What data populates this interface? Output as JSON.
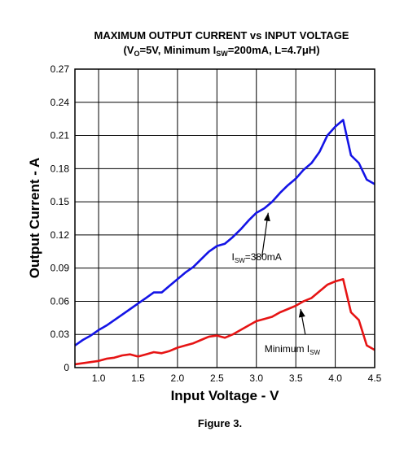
{
  "chart_data": {
    "type": "line",
    "title_line1": "MAXIMUM OUTPUT CURRENT vs INPUT VOLTAGE",
    "title_line2": {
      "open": "(V",
      "vo_sub": "O",
      "mid": "=5V, Minimum I",
      "isw_sub": "SW",
      "close": "=200mA, L=4.7μH)"
    },
    "xlabel": "Input Voltage - V",
    "ylabel": "Output Current - A",
    "xlim": [
      0.7,
      4.5
    ],
    "ylim": [
      0,
      0.27
    ],
    "x_ticks": [
      1.0,
      1.5,
      2.0,
      2.5,
      3.0,
      3.5,
      4.0,
      4.5
    ],
    "x_tick_labels": [
      "1.0",
      "1.5",
      "2.0",
      "2.5",
      "3.0",
      "3.5",
      "4.0",
      "4.5"
    ],
    "y_ticks": [
      0,
      0.03,
      0.06,
      0.09,
      0.12,
      0.15,
      0.18,
      0.21,
      0.24,
      0.27
    ],
    "y_tick_labels": [
      "0",
      "0.03",
      "0.06",
      "0.09",
      "0.12",
      "0.15",
      "0.18",
      "0.21",
      "0.24",
      "0.27"
    ],
    "grid": true,
    "series": [
      {
        "color": "#1414e6",
        "x": [
          0.7,
          0.8,
          0.9,
          1.0,
          1.1,
          1.2,
          1.3,
          1.4,
          1.5,
          1.6,
          1.7,
          1.8,
          1.9,
          2.0,
          2.1,
          2.2,
          2.3,
          2.4,
          2.5,
          2.6,
          2.7,
          2.8,
          2.9,
          3.0,
          3.1,
          3.2,
          3.3,
          3.4,
          3.5,
          3.6,
          3.7,
          3.8,
          3.9,
          4.0,
          4.05,
          4.1,
          4.2,
          4.3,
          4.4,
          4.5
        ],
        "y": [
          0.02,
          0.025,
          0.029,
          0.034,
          0.038,
          0.043,
          0.048,
          0.053,
          0.058,
          0.063,
          0.068,
          0.068,
          0.074,
          0.08,
          0.086,
          0.091,
          0.098,
          0.105,
          0.11,
          0.112,
          0.118,
          0.125,
          0.133,
          0.14,
          0.144,
          0.15,
          0.158,
          0.165,
          0.171,
          0.179,
          0.185,
          0.195,
          0.21,
          0.218,
          0.221,
          0.224,
          0.192,
          0.185,
          0.17,
          0.166
        ]
      },
      {
        "color": "#e61414",
        "x": [
          0.7,
          0.8,
          0.9,
          1.0,
          1.1,
          1.2,
          1.3,
          1.4,
          1.5,
          1.6,
          1.7,
          1.8,
          1.9,
          2.0,
          2.1,
          2.2,
          2.3,
          2.4,
          2.5,
          2.6,
          2.7,
          2.8,
          2.9,
          3.0,
          3.1,
          3.2,
          3.3,
          3.4,
          3.5,
          3.6,
          3.7,
          3.8,
          3.9,
          4.0,
          4.1,
          4.2,
          4.3,
          4.4,
          4.5
        ],
        "y": [
          0.003,
          0.004,
          0.005,
          0.006,
          0.008,
          0.009,
          0.011,
          0.012,
          0.01,
          0.012,
          0.014,
          0.013,
          0.015,
          0.018,
          0.02,
          0.022,
          0.025,
          0.028,
          0.029,
          0.027,
          0.03,
          0.034,
          0.038,
          0.042,
          0.044,
          0.046,
          0.05,
          0.053,
          0.056,
          0.06,
          0.063,
          0.069,
          0.075,
          0.078,
          0.08,
          0.05,
          0.043,
          0.02,
          0.016
        ]
      }
    ],
    "annotations": [
      {
        "text": "I",
        "sub": "SW",
        "after": "=380mA",
        "tail_x": 3.07,
        "tail_y": 0.1,
        "head_x": 3.15,
        "head_y": 0.14
      },
      {
        "text": "Minimum I",
        "sub": "SW",
        "after": "",
        "tail_x": 3.62,
        "tail_y": 0.03,
        "head_x": 3.56,
        "head_y": 0.053
      }
    ]
  },
  "caption": "Figure 3."
}
